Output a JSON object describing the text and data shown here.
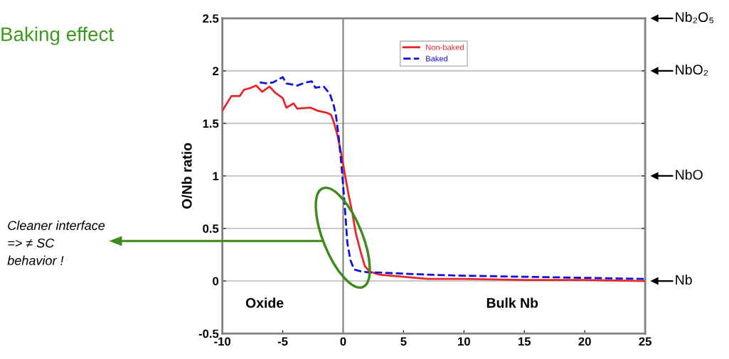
{
  "chart_data": {
    "type": "line",
    "title": "Baking effect",
    "ylabel": "O/Nb ratio",
    "xlim": [
      -10,
      25
    ],
    "xticks": [
      -10,
      -5,
      0,
      5,
      10,
      15,
      20,
      25
    ],
    "ylim": [
      -0.5,
      2.5
    ],
    "yticks": [
      -0.5,
      0,
      0.5,
      1,
      1.5,
      2,
      2.5
    ],
    "grid": "y",
    "legend": "top",
    "marker": "none",
    "ref_lines": [
      {
        "axis": "x",
        "value": 0,
        "color": "#808080"
      }
    ],
    "annotations": [
      "Oxide",
      "Bulk Nb",
      "Cleaner interface\n=> ≠ SC\nbehavior !",
      "Nb₂O₅",
      "NbO₂",
      "NbO",
      "Nb"
    ],
    "series": [
      {
        "name": "Non-baked",
        "color": "#e8262a",
        "line_style": "solid",
        "x": [
          -10,
          -9.25,
          -8.56,
          -8.2,
          -7.6,
          -7.2,
          -6.7,
          -6.1,
          -5.6,
          -5.0,
          -4.7,
          -4.1,
          -3.8,
          -2.7,
          -2.1,
          -1.3,
          -1.0,
          -0.8,
          -0.5,
          -0.1,
          0.18,
          0.47,
          0.77,
          1.06,
          1.47,
          1.8,
          2.2,
          3,
          5,
          7,
          10,
          15,
          20,
          25
        ],
        "values": [
          1.62,
          1.76,
          1.76,
          1.82,
          1.84,
          1.86,
          1.8,
          1.85,
          1.79,
          1.74,
          1.65,
          1.69,
          1.64,
          1.65,
          1.62,
          1.6,
          1.58,
          1.52,
          1.4,
          1.18,
          0.99,
          0.81,
          0.64,
          0.45,
          0.27,
          0.14,
          0.09,
          0.06,
          0.04,
          0.02,
          0.02,
          0.01,
          0.01,
          0.0
        ]
      },
      {
        "name": "Baked",
        "color": "#1010e0",
        "line_style": "dashed",
        "x": [
          -6.9,
          -6.3,
          -5.8,
          -5.0,
          -4.7,
          -3.8,
          -3.1,
          -2.6,
          -2.3,
          -1.6,
          -1.1,
          -0.8,
          -0.6,
          -0.4,
          -0.2,
          0.0,
          0.18,
          0.35,
          0.6,
          0.9,
          1.5,
          2.2,
          3,
          5,
          7,
          10,
          15,
          20,
          25
        ],
        "values": [
          1.89,
          1.88,
          1.89,
          1.94,
          1.88,
          1.86,
          1.89,
          1.9,
          1.84,
          1.85,
          1.78,
          1.68,
          1.58,
          1.4,
          1.18,
          0.91,
          0.64,
          0.36,
          0.2,
          0.11,
          0.09,
          0.08,
          0.08,
          0.07,
          0.06,
          0.05,
          0.04,
          0.03,
          0.02
        ]
      }
    ]
  }
}
